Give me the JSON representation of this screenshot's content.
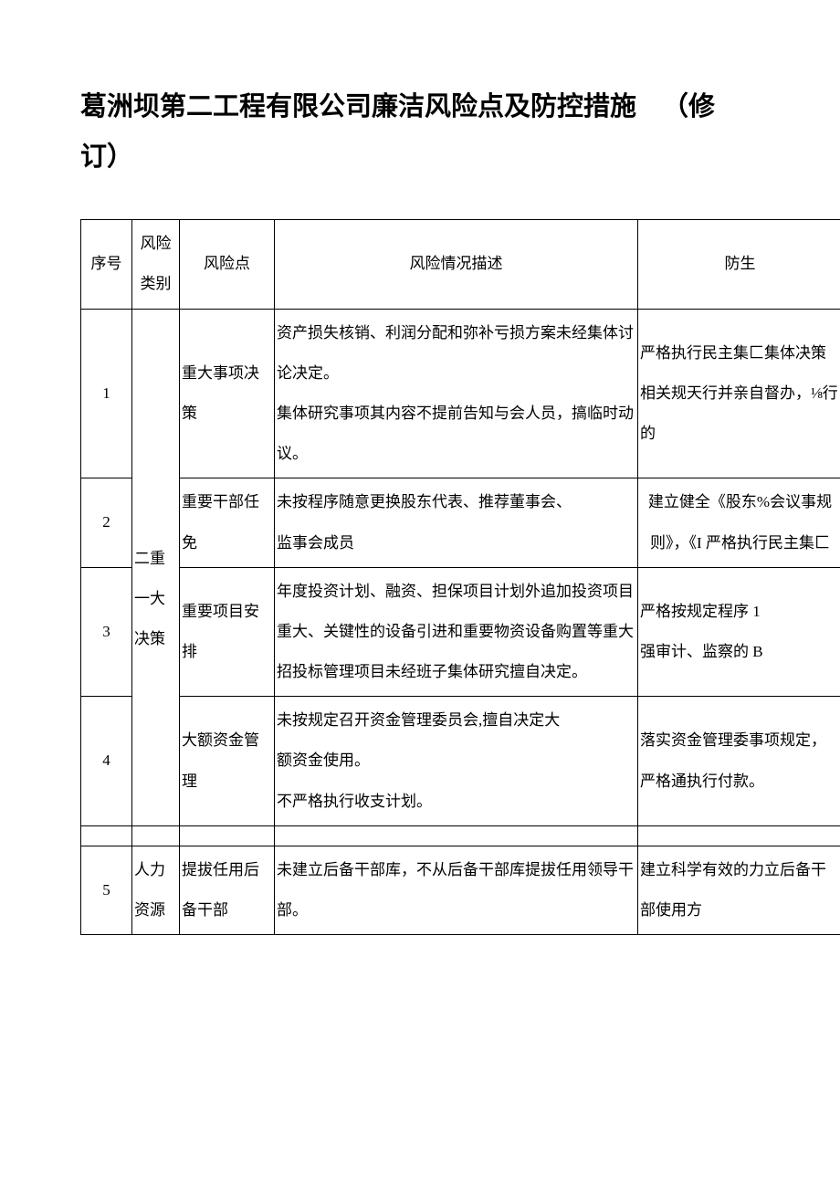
{
  "title": {
    "main": "葛洲坝第二工程有限公司廉洁风险点及防控措施",
    "suffix": "（修",
    "line2": "订）"
  },
  "headers": {
    "seq": "序号",
    "category": "风险类别",
    "point": "风险点",
    "desc": "风险情况描述",
    "measure": "防生"
  },
  "rows": [
    {
      "seq": "1",
      "category": "二重一大决策",
      "point": "重大事项决策",
      "desc": "资产损失核销、利润分配和弥补亏损方案未经集体讨论决定。\n集体研究事项其内容不提前告知与会人员，搞临时动议。",
      "measure": "严格执行民主集匚集体决策相关规天行并亲自督办，⅛行的"
    },
    {
      "seq": "2",
      "point": "重要干部任免",
      "desc": "未按程序随意更换股东代表、推荐董事会、\n监事会成员",
      "measure": "建立健全《股东%会议事规则》，《I 严格执行民主集匚"
    },
    {
      "seq": "3",
      "point": "重要项目安排",
      "desc": "年度投资计划、融资、担保项目计划外追加投资项目重大、关键性的设备引进和重要物资设备购置等重大招投标管理项目未经班子集体研究擅自决定。",
      "measure": "严格按规定程序 1\n强审计、监察的 B"
    },
    {
      "seq": "4",
      "point": "大额资金管理",
      "desc": "未按规定召开资金管理委员会,擅自决定大\n额资金使用。\n不严格执行收支计划。",
      "measure": "落实资金管理委事项规定，严格通执行付款。"
    },
    {
      "seq": "5",
      "category": "人力资源",
      "point": "提拔任用后备干部",
      "desc": "未建立后备干部库，不从后备干部库提拔任用领导干部。",
      "measure": "建立科学有效的力立后备干部使用方"
    }
  ]
}
